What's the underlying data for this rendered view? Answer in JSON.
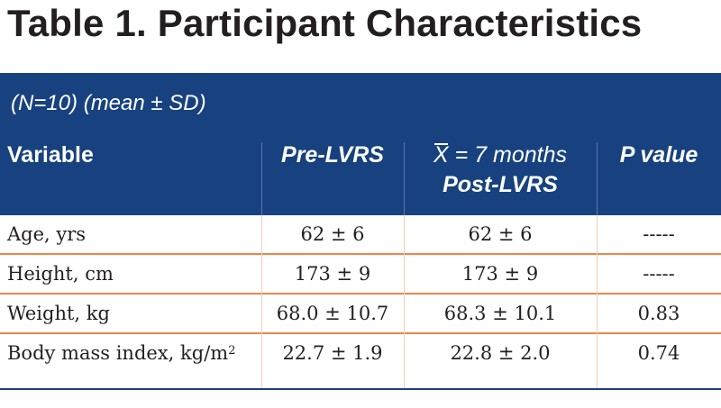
{
  "title": "Table 1.  Participant Characteristics",
  "subtitle": "(N=10) (mean ± SD)",
  "headers": {
    "variable": "Variable",
    "pre": "Pre-LVRS",
    "post_line1_symbol": "X",
    "post_line1_rest": " = 7 months",
    "post_line2": "Post-LVRS",
    "p": "P value"
  },
  "rows": [
    {
      "variable": "Age, yrs",
      "pre": "62 ± 6",
      "post": "62 ± 6",
      "p": "-----"
    },
    {
      "variable": "Height, cm",
      "pre": "173 ± 9",
      "post": "173 ± 9",
      "p": "-----"
    },
    {
      "variable": "Weight, kg",
      "pre": "68.0 ± 10.7",
      "post": "68.3 ± 10.1",
      "p": "0.83"
    },
    {
      "variable": "Body mass index,  kg/m",
      "variable_sup": "2",
      "pre": "22.7 ± 1.9",
      "post": "22.8 ± 2.0",
      "p": "0.74"
    }
  ],
  "colors": {
    "header_bg": "#17427f",
    "row_rule": "#e8874c",
    "title_text": "#231f20"
  }
}
